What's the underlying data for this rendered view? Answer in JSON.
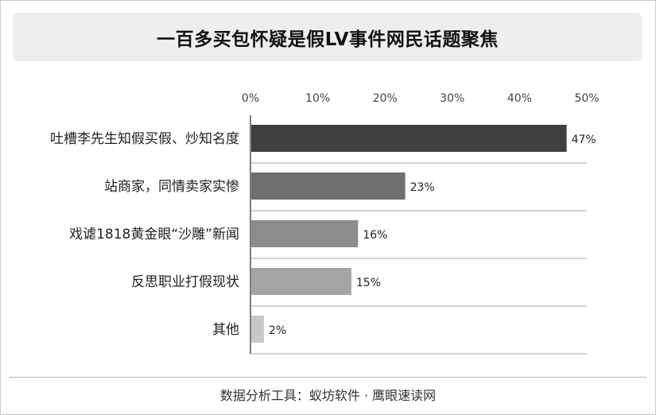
{
  "title": "一百多买包怀疑是假LV事件网民话题聚焦",
  "footer": "数据分析工具：蚁坊软件 · 鹰眼速读网",
  "chart_data": {
    "type": "bar",
    "orientation": "horizontal",
    "title": "一百多买包怀疑是假LV事件网民话题聚焦",
    "categories": [
      "吐槽李先生知假买假、炒知名度",
      "站商家，同情卖家实惨",
      "戏谑1818黄金眼“沙雕”新闻",
      "反思职业打假现状",
      "其他"
    ],
    "values": [
      47,
      23,
      16,
      15,
      2
    ],
    "value_labels": [
      "47%",
      "23%",
      "16%",
      "15%",
      "2%"
    ],
    "colors": [
      "#404040",
      "#6f6f6f",
      "#8c8c8c",
      "#a5a5a5",
      "#c8c8c8"
    ],
    "xlim": [
      0,
      50
    ],
    "xticks": [
      0,
      10,
      20,
      30,
      40,
      50
    ],
    "xtick_labels": [
      "0%",
      "10%",
      "20%",
      "30%",
      "40%",
      "50%"
    ],
    "axis_position": "top",
    "grid": "horizontal-separators",
    "legend": "none"
  }
}
